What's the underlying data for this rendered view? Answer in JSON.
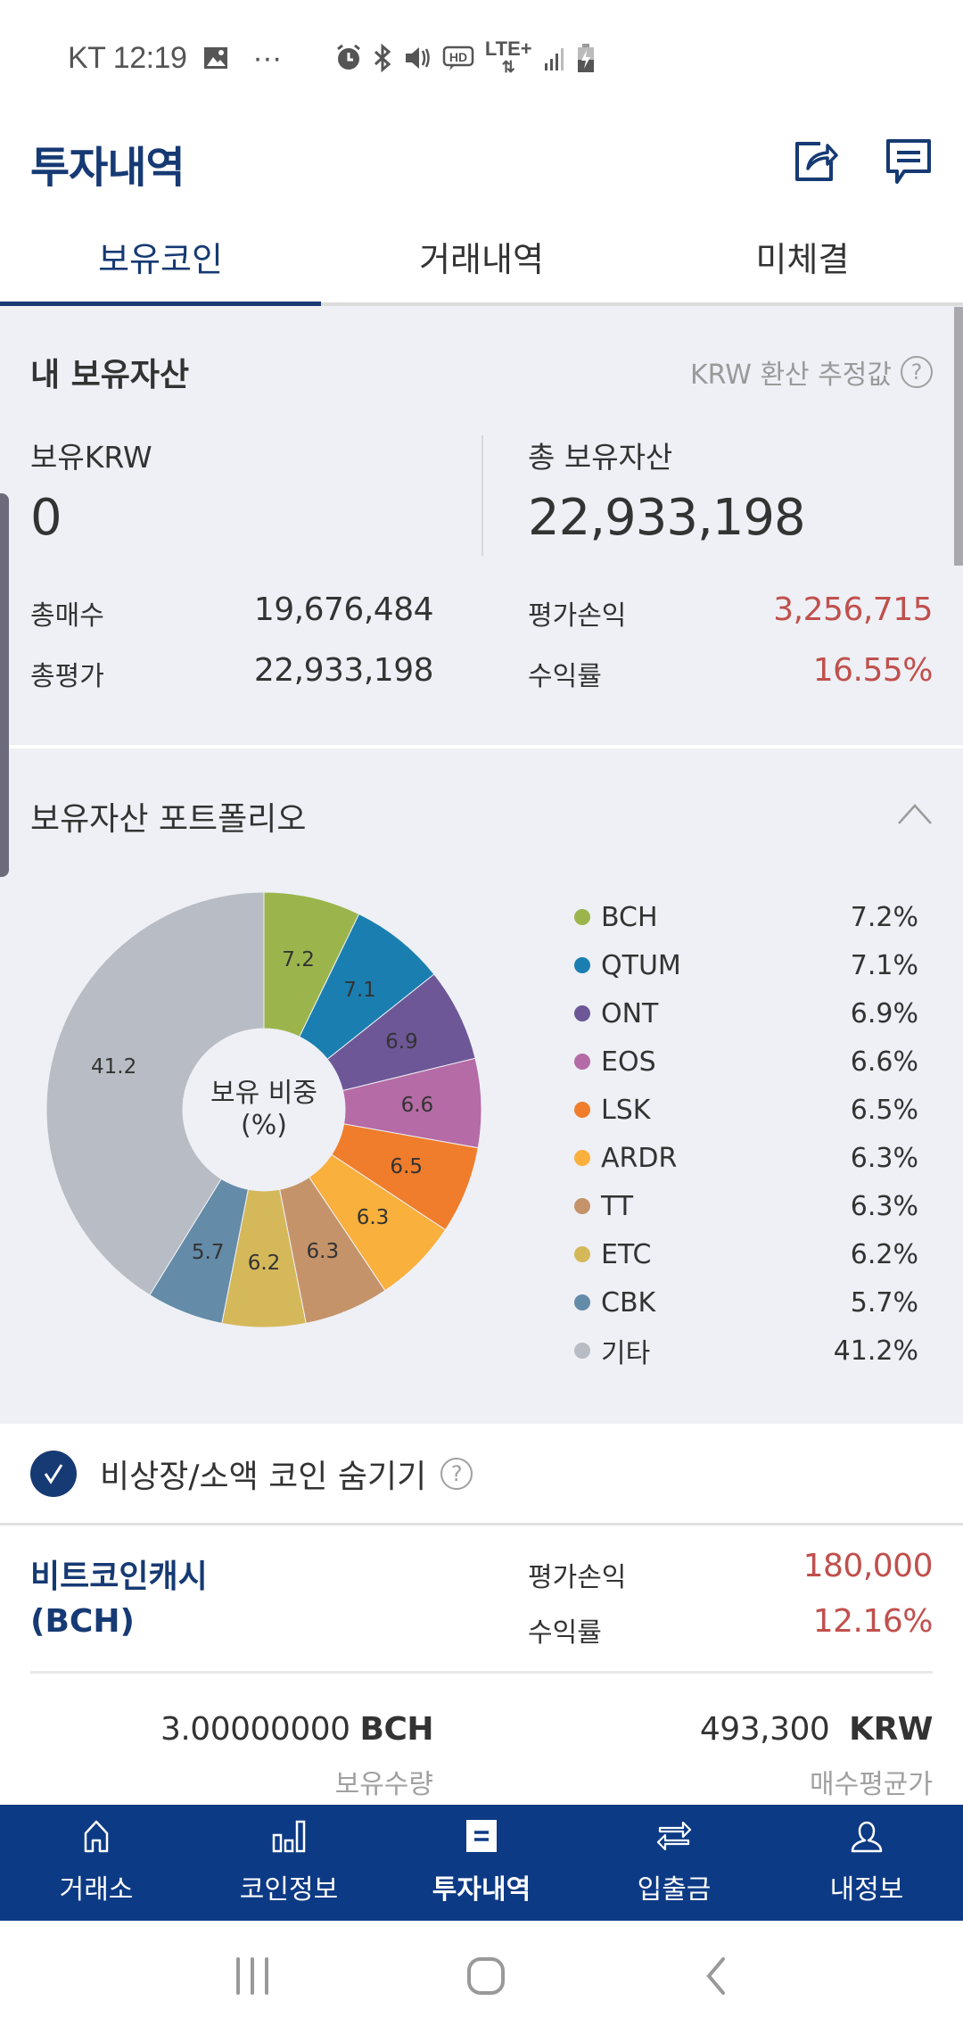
{
  "status_bar": {
    "carrier_time": "KT 12:19",
    "more": "···",
    "icons": [
      "gallery-icon",
      "alarm-icon",
      "bluetooth-icon",
      "mute-icon",
      "hd-voice-icon",
      "lte-plus-icon",
      "signal-icon",
      "battery-charging-icon"
    ],
    "network": "LTE+"
  },
  "header": {
    "title": "투자내역",
    "actions": [
      "share-icon",
      "chat-icon"
    ]
  },
  "tabs": [
    {
      "label": "보유코인",
      "active": true
    },
    {
      "label": "거래내역",
      "active": false
    },
    {
      "label": "미체결",
      "active": false
    }
  ],
  "assets": {
    "title": "내 보유자산",
    "note": "KRW 환산 추정값",
    "krw_label": "보유KRW",
    "krw_value": "0",
    "total_label": "총 보유자산",
    "total_value": "22,933,198",
    "rows": [
      {
        "label": "총매수",
        "value": "19,676,484"
      },
      {
        "label": "총평가",
        "value": "22,933,198"
      },
      {
        "label": "평가손익",
        "value": "3,256,715"
      },
      {
        "label": "수익률",
        "value": "16.55%"
      }
    ],
    "profit_color": "#c0504d"
  },
  "portfolio": {
    "title": "보유자산 포트폴리오",
    "center_line1": "보유 비중",
    "center_line2": "(%)",
    "legend": [
      {
        "name": "BCH",
        "pct": "7.2%",
        "color": "#9bb54c"
      },
      {
        "name": "QTUM",
        "pct": "7.1%",
        "color": "#1a7fb0"
      },
      {
        "name": "ONT",
        "pct": "6.9%",
        "color": "#6d5797"
      },
      {
        "name": "EOS",
        "pct": "6.6%",
        "color": "#b56ba5"
      },
      {
        "name": "LSK",
        "pct": "6.5%",
        "color": "#f07d2c"
      },
      {
        "name": "ARDR",
        "pct": "6.3%",
        "color": "#f9b03c"
      },
      {
        "name": "TT",
        "pct": "6.3%",
        "color": "#c5936a"
      },
      {
        "name": "ETC",
        "pct": "6.2%",
        "color": "#d5b85a"
      },
      {
        "name": "CBK",
        "pct": "5.7%",
        "color": "#648ba8"
      },
      {
        "name": "기타",
        "pct": "41.2%",
        "color": "#b8bcc4"
      }
    ]
  },
  "chart_data": {
    "type": "pie",
    "title": "보유 비중 (%)",
    "categories": [
      "BCH",
      "QTUM",
      "ONT",
      "EOS",
      "LSK",
      "ARDR",
      "TT",
      "ETC",
      "CBK",
      "기타"
    ],
    "values": [
      7.2,
      7.1,
      6.9,
      6.6,
      6.5,
      6.3,
      6.3,
      6.2,
      5.7,
      41.2
    ],
    "colors": [
      "#9bb54c",
      "#1a7fb0",
      "#6d5797",
      "#b56ba5",
      "#f07d2c",
      "#f9b03c",
      "#c5936a",
      "#d5b85a",
      "#648ba8",
      "#b8bcc4"
    ],
    "donut": true,
    "legend_position": "right"
  },
  "hide_toggle": {
    "label": "비상장/소액 코인 숨기기",
    "checked": true
  },
  "coin": {
    "name": "비트코인캐시",
    "symbol_paren": "(BCH)",
    "pnl_label": "평가손익",
    "pnl_value": "180,000",
    "rate_label": "수익률",
    "rate_value": "12.16%",
    "qty_value": "3.00000000",
    "qty_unit": "BCH",
    "qty_label": "보유수량",
    "avg_value": "493,300",
    "avg_unit": "KRW",
    "avg_label": "매수평균가"
  },
  "bottom_nav": [
    {
      "label": "거래소",
      "icon": "home-icon",
      "active": false
    },
    {
      "label": "코인정보",
      "icon": "bar-chart-icon",
      "active": false
    },
    {
      "label": "투자내역",
      "icon": "list-icon",
      "active": true
    },
    {
      "label": "입출금",
      "icon": "transfer-icon",
      "active": false
    },
    {
      "label": "내정보",
      "icon": "user-icon",
      "active": false
    }
  ],
  "colors": {
    "brand": "#163a73",
    "nav_bg": "#0d3a85",
    "section_bg": "#eef0f5",
    "profit": "#c0504d"
  }
}
